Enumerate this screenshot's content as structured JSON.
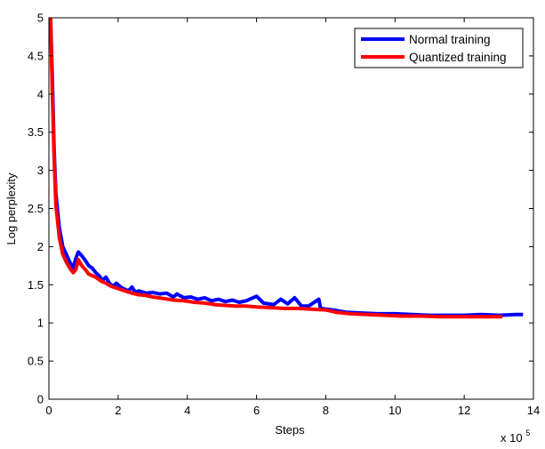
{
  "chart_data": {
    "type": "line",
    "title": "",
    "xlabel": "Steps",
    "ylabel": "Log perplexity",
    "x_multiplier_label": "x 10",
    "x_multiplier_exponent": "5",
    "xlim": [
      0,
      14
    ],
    "ylim": [
      0,
      5
    ],
    "x_ticks": [
      "0",
      "2",
      "4",
      "6",
      "8",
      "10",
      "12",
      "14"
    ],
    "y_ticks": [
      "0",
      "0.5",
      "1",
      "1.5",
      "2",
      "2.5",
      "3",
      "3.5",
      "4",
      "4.5",
      "5"
    ],
    "grid": false,
    "legend_position": "top-right",
    "series": [
      {
        "name": "Normal training",
        "color": "#0000ff",
        "points": [
          [
            0.05,
            5.0
          ],
          [
            0.1,
            4.2
          ],
          [
            0.15,
            3.3
          ],
          [
            0.2,
            2.7
          ],
          [
            0.3,
            2.25
          ],
          [
            0.4,
            2.0
          ],
          [
            0.5,
            1.9
          ],
          [
            0.6,
            1.8
          ],
          [
            0.7,
            1.72
          ],
          [
            0.78,
            1.85
          ],
          [
            0.85,
            1.93
          ],
          [
            0.95,
            1.88
          ],
          [
            1.05,
            1.82
          ],
          [
            1.15,
            1.75
          ],
          [
            1.25,
            1.72
          ],
          [
            1.35,
            1.66
          ],
          [
            1.45,
            1.62
          ],
          [
            1.55,
            1.56
          ],
          [
            1.65,
            1.6
          ],
          [
            1.75,
            1.52
          ],
          [
            1.85,
            1.48
          ],
          [
            1.95,
            1.52
          ],
          [
            2.1,
            1.46
          ],
          [
            2.2,
            1.44
          ],
          [
            2.3,
            1.42
          ],
          [
            2.4,
            1.47
          ],
          [
            2.5,
            1.4
          ],
          [
            2.6,
            1.42
          ],
          [
            2.8,
            1.39
          ],
          [
            3.0,
            1.4
          ],
          [
            3.2,
            1.38
          ],
          [
            3.4,
            1.39
          ],
          [
            3.6,
            1.34
          ],
          [
            3.7,
            1.38
          ],
          [
            3.9,
            1.33
          ],
          [
            4.1,
            1.34
          ],
          [
            4.3,
            1.31
          ],
          [
            4.5,
            1.33
          ],
          [
            4.7,
            1.29
          ],
          [
            4.9,
            1.31
          ],
          [
            5.1,
            1.28
          ],
          [
            5.3,
            1.3
          ],
          [
            5.5,
            1.27
          ],
          [
            5.7,
            1.29
          ],
          [
            6.0,
            1.35
          ],
          [
            6.2,
            1.26
          ],
          [
            6.5,
            1.24
          ],
          [
            6.7,
            1.31
          ],
          [
            6.9,
            1.25
          ],
          [
            7.1,
            1.33
          ],
          [
            7.3,
            1.22
          ],
          [
            7.5,
            1.22
          ],
          [
            7.8,
            1.31
          ],
          [
            7.85,
            1.19
          ],
          [
            8.2,
            1.17
          ],
          [
            8.6,
            1.14
          ],
          [
            9.0,
            1.13
          ],
          [
            9.5,
            1.12
          ],
          [
            10.0,
            1.12
          ],
          [
            10.5,
            1.11
          ],
          [
            11.0,
            1.1
          ],
          [
            11.5,
            1.1
          ],
          [
            12.0,
            1.1
          ],
          [
            12.5,
            1.11
          ],
          [
            13.0,
            1.1
          ],
          [
            13.5,
            1.11
          ],
          [
            13.7,
            1.11
          ]
        ]
      },
      {
        "name": "Quantized training",
        "color": "#ff0000",
        "points": [
          [
            0.05,
            5.0
          ],
          [
            0.1,
            4.0
          ],
          [
            0.15,
            3.2
          ],
          [
            0.2,
            2.55
          ],
          [
            0.3,
            2.12
          ],
          [
            0.4,
            1.9
          ],
          [
            0.5,
            1.8
          ],
          [
            0.6,
            1.72
          ],
          [
            0.7,
            1.66
          ],
          [
            0.78,
            1.7
          ],
          [
            0.85,
            1.83
          ],
          [
            0.95,
            1.75
          ],
          [
            1.05,
            1.7
          ],
          [
            1.15,
            1.64
          ],
          [
            1.25,
            1.62
          ],
          [
            1.35,
            1.6
          ],
          [
            1.5,
            1.55
          ],
          [
            1.65,
            1.52
          ],
          [
            1.8,
            1.48
          ],
          [
            2.0,
            1.45
          ],
          [
            2.2,
            1.42
          ],
          [
            2.4,
            1.39
          ],
          [
            2.6,
            1.37
          ],
          [
            2.8,
            1.36
          ],
          [
            3.0,
            1.34
          ],
          [
            3.3,
            1.32
          ],
          [
            3.6,
            1.3
          ],
          [
            3.9,
            1.29
          ],
          [
            4.2,
            1.27
          ],
          [
            4.5,
            1.26
          ],
          [
            4.8,
            1.24
          ],
          [
            5.1,
            1.23
          ],
          [
            5.4,
            1.22
          ],
          [
            5.7,
            1.22
          ],
          [
            6.0,
            1.21
          ],
          [
            6.4,
            1.2
          ],
          [
            6.8,
            1.19
          ],
          [
            7.2,
            1.19
          ],
          [
            7.6,
            1.18
          ],
          [
            8.0,
            1.17
          ],
          [
            8.3,
            1.14
          ],
          [
            8.7,
            1.12
          ],
          [
            9.2,
            1.11
          ],
          [
            9.7,
            1.1
          ],
          [
            10.2,
            1.09
          ],
          [
            10.8,
            1.09
          ],
          [
            11.3,
            1.08
          ],
          [
            11.8,
            1.08
          ],
          [
            12.3,
            1.08
          ],
          [
            12.8,
            1.08
          ],
          [
            13.1,
            1.08
          ]
        ]
      }
    ]
  }
}
